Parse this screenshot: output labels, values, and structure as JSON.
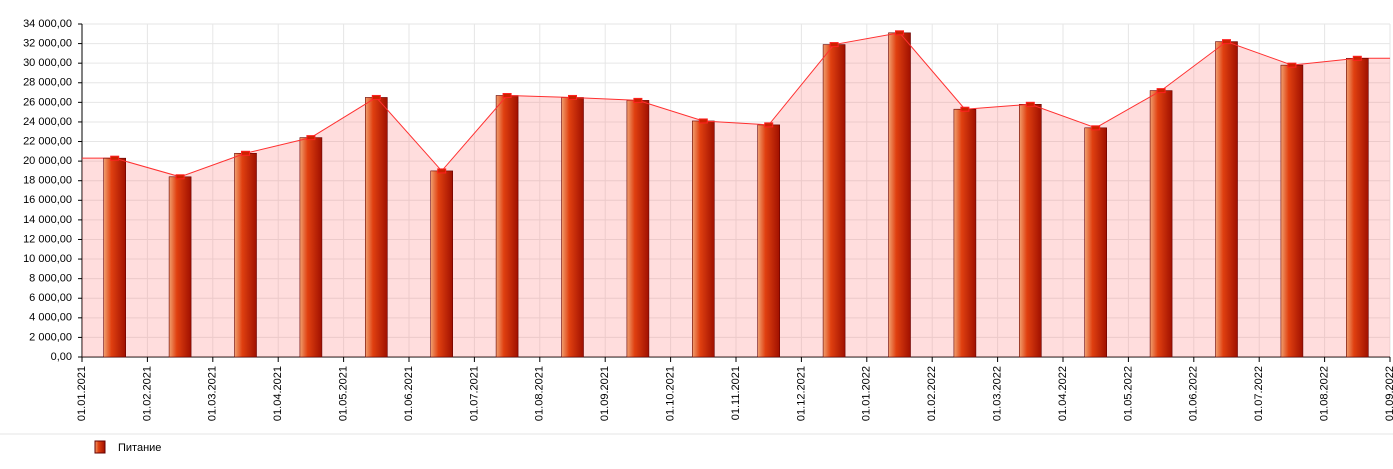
{
  "chart_data": {
    "type": "bar",
    "x_tick_labels": [
      "01.01.2021",
      "01.02.2021",
      "01.03.2021",
      "01.04.2021",
      "01.05.2021",
      "01.06.2021",
      "01.07.2021",
      "01.08.2021",
      "01.09.2021",
      "01.10.2021",
      "01.11.2021",
      "01.12.2021",
      "01.01.2022",
      "01.02.2022",
      "01.03.2022",
      "01.04.2022",
      "01.05.2022",
      "01.06.2022",
      "01.07.2022",
      "01.08.2022",
      "01.09.2022"
    ],
    "series": [
      {
        "name": "Питание",
        "color": "#cc2200",
        "values": [
          20300,
          18400,
          20800,
          22400,
          26500,
          19000,
          26700,
          26500,
          26200,
          24100,
          23700,
          31900,
          33100,
          25300,
          25800,
          23400,
          27200,
          32200,
          29800,
          30500
        ]
      }
    ],
    "ylim": [
      0,
      34000
    ],
    "yticks": [
      {
        "value": 0,
        "label": "0,00"
      },
      {
        "value": 2000,
        "label": "2 000,00"
      },
      {
        "value": 4000,
        "label": "4 000,00"
      },
      {
        "value": 6000,
        "label": "6 000,00"
      },
      {
        "value": 8000,
        "label": "8 000,00"
      },
      {
        "value": 10000,
        "label": "10 000,00"
      },
      {
        "value": 12000,
        "label": "12 000,00"
      },
      {
        "value": 14000,
        "label": "14 000,00"
      },
      {
        "value": 16000,
        "label": "16 000,00"
      },
      {
        "value": 18000,
        "label": "18 000,00"
      },
      {
        "value": 20000,
        "label": "20 000,00"
      },
      {
        "value": 22000,
        "label": "22 000,00"
      },
      {
        "value": 24000,
        "label": "24 000,00"
      },
      {
        "value": 26000,
        "label": "26 000,00"
      },
      {
        "value": 28000,
        "label": "28 000,00"
      },
      {
        "value": 30000,
        "label": "30 000,00"
      },
      {
        "value": 32000,
        "label": "32 000,00"
      },
      {
        "value": 34000,
        "label": "34 000,00"
      }
    ],
    "grid": true
  }
}
